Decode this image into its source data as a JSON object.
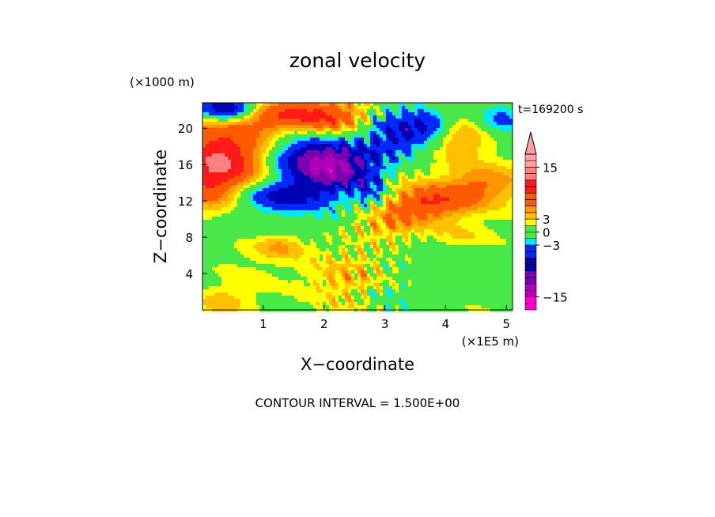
{
  "chart_data": {
    "type": "heatmap",
    "title": "zonal velocity",
    "xlabel": "X−coordinate",
    "ylabel": "Z−coordinate",
    "x_scale_note": "(×1E5 m)",
    "y_scale_note": "(×1000 m)",
    "time_label": "t=169200 s",
    "footer": "CONTOUR INTERVAL = 1.500E+00",
    "xlim": [
      0,
      5.1
    ],
    "ylim": [
      0,
      22.8
    ],
    "x_ticks": [
      "1",
      "2",
      "3",
      "4",
      "5"
    ],
    "x_tick_values": [
      1,
      2,
      3,
      4,
      5
    ],
    "y_ticks": [
      "4",
      "8",
      "12",
      "16",
      "20"
    ],
    "y_tick_values": [
      4,
      8,
      12,
      16,
      20
    ],
    "contour_interval": 1.5,
    "colorbar": {
      "levels": [
        -18,
        -16.5,
        -15,
        -13.5,
        -12,
        -10.5,
        -9,
        -7.5,
        -6,
        -4.5,
        -3,
        -1.5,
        0,
        1.5,
        3,
        4.5,
        6,
        7.5,
        9,
        10.5,
        12,
        13.5,
        15,
        16.5,
        18
      ],
      "tick_labels": [
        "15",
        "3",
        "0",
        "−3",
        "−15"
      ],
      "tick_values": [
        15,
        3,
        0,
        -3,
        -15
      ],
      "extend_max": true
    },
    "colors": {
      "magenta": "#ff00cc",
      "violet": "#b000b8",
      "purple": "#7a00b0",
      "dark_blue": "#0000b4",
      "blue": "#0028ff",
      "cyan": "#00e8ff",
      "green": "#48e848",
      "yellow": "#ffff00",
      "yellow_orange": "#ffc000",
      "orange": "#ff9600",
      "orange_red": "#ff5a00",
      "red": "#ff1a1a",
      "salmon": "#ff8080",
      "pink": "#ffa0a0"
    },
    "blobs": [
      {
        "x": 0.5,
        "z": 17.0,
        "value": 8,
        "sx": 0.55,
        "sz": 3.0
      },
      {
        "x": 0.15,
        "z": 14.5,
        "value": 6,
        "sx": 0.35,
        "sz": 3.0
      },
      {
        "x": 1.2,
        "z": 21.5,
        "value": 6,
        "sx": 0.5,
        "sz": 1.2
      },
      {
        "x": 2.2,
        "z": 21.2,
        "value": 7,
        "sx": 0.55,
        "sz": 1.4
      },
      {
        "x": 0.4,
        "z": 22.2,
        "value": -12,
        "sx": 0.35,
        "sz": 1.0
      },
      {
        "x": 1.7,
        "z": 16.5,
        "value": -11,
        "sx": 0.45,
        "sz": 1.9
      },
      {
        "x": 1.3,
        "z": 12.5,
        "value": -9,
        "sx": 0.55,
        "sz": 1.2
      },
      {
        "x": 2.3,
        "z": 15.5,
        "value": -9,
        "sx": 0.4,
        "sz": 1.8
      },
      {
        "x": 3.2,
        "z": 19.5,
        "value": -8,
        "sx": 0.45,
        "sz": 2.2
      },
      {
        "x": 3.8,
        "z": 20.5,
        "value": -5,
        "sx": 0.3,
        "sz": 1.2
      },
      {
        "x": 4.85,
        "z": 20.8,
        "value": -5,
        "sx": 0.35,
        "sz": 1.5
      },
      {
        "x": 4.3,
        "z": 19.2,
        "value": 5,
        "sx": 0.4,
        "sz": 1.8
      },
      {
        "x": 3.8,
        "z": 11.8,
        "value": 8,
        "sx": 0.55,
        "sz": 1.3
      },
      {
        "x": 4.6,
        "z": 14.0,
        "value": 5,
        "sx": 0.45,
        "sz": 1.4
      },
      {
        "x": 3.1,
        "z": 9.5,
        "value": 4,
        "sx": 0.4,
        "sz": 1.1
      },
      {
        "x": 3.6,
        "z": 6.0,
        "value": -1.4,
        "sx": 0.6,
        "sz": 2.5
      },
      {
        "x": 4.7,
        "z": 5.0,
        "value": -1.2,
        "sx": 0.55,
        "sz": 3.5
      },
      {
        "x": 1.0,
        "z": 9.5,
        "value": -2.5,
        "sx": 0.8,
        "sz": 1.2
      },
      {
        "x": 2.3,
        "z": 3.5,
        "value": 2.8,
        "sx": 0.5,
        "sz": 2.2
      },
      {
        "x": 1.3,
        "z": 7.0,
        "value": 3.5,
        "sx": 0.3,
        "sz": 1.0
      },
      {
        "x": 0.3,
        "z": 1.0,
        "value": 2.5,
        "sx": 0.3,
        "sz": 1.0
      },
      {
        "x": 3.0,
        "z": 1.5,
        "value": -2.2,
        "sx": 0.35,
        "sz": 1.2
      },
      {
        "x": 4.2,
        "z": 8.0,
        "value": 3.2,
        "sx": 0.4,
        "sz": 1.2
      },
      {
        "x": 2.8,
        "z": 13.0,
        "value": -4,
        "sx": 0.2,
        "sz": 1.5
      }
    ],
    "base_value": 1.2,
    "wave_packet": {
      "center_x": 2.75,
      "width_x": 0.55,
      "amplitude": 3.5,
      "kx": 22,
      "kz": 1.6
    }
  }
}
